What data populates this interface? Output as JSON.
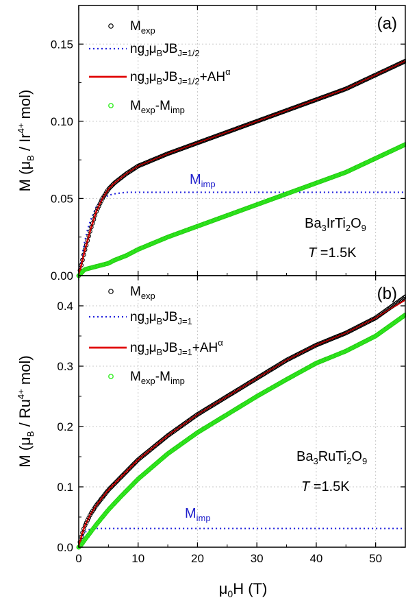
{
  "colors": {
    "exp": "#000000",
    "bj": "#2222dd",
    "fit": "#e00000",
    "diff": "#33ee22",
    "grid": "#c8c8c8"
  },
  "chart_data": [
    {
      "type": "scatter",
      "panel_label": "(a)",
      "xlabel": "",
      "ylabel": "M (μB / Ir4+ mol)",
      "xlim": [
        0,
        55
      ],
      "ylim": [
        0,
        0.175
      ],
      "x_ticks": [
        0,
        10,
        20,
        30,
        40,
        50
      ],
      "y_ticks": [
        0.0,
        0.05,
        0.1,
        0.15
      ],
      "y_tick_labels": [
        "0.00",
        "0.05",
        "0.10",
        "0.15"
      ],
      "grid": true,
      "legend_position": "top-left",
      "legend": [
        {
          "main": "M",
          "sub": "exp"
        },
        {
          "main": "ngJμBJBJ=1/2"
        },
        {
          "main": "ngJμBJBJ=1/2+AHα"
        },
        {
          "main": "Mexp-Mimp"
        }
      ],
      "compound": "Ba3IrTi2O9",
      "temperature": "T =1.5K",
      "imp_label": "Mimp",
      "series": [
        {
          "name": "Mexp",
          "style": "open-circle",
          "x": [
            0,
            0.5,
            1,
            2,
            3,
            4,
            5,
            6,
            8,
            10,
            15,
            20,
            25,
            30,
            35,
            40,
            45,
            50,
            55
          ],
          "y": [
            0,
            0.008,
            0.016,
            0.03,
            0.042,
            0.05,
            0.056,
            0.06,
            0.066,
            0.071,
            0.079,
            0.086,
            0.093,
            0.1,
            0.107,
            0.114,
            0.121,
            0.13,
            0.139
          ]
        },
        {
          "name": "ngJμBJBJ=1/2",
          "style": "dotted",
          "x": [
            0,
            0.5,
            1,
            1.5,
            2,
            3,
            4,
            5,
            6,
            8,
            10,
            55
          ],
          "y": [
            0,
            0.012,
            0.022,
            0.03,
            0.036,
            0.045,
            0.05,
            0.052,
            0.053,
            0.054,
            0.054,
            0.054
          ]
        },
        {
          "name": "ngJμBJBJ=1/2+AHα",
          "style": "solid",
          "x": [
            0,
            0.5,
            1,
            2,
            3,
            4,
            5,
            6,
            8,
            10,
            15,
            20,
            25,
            30,
            35,
            40,
            45,
            50,
            55
          ],
          "y": [
            0,
            0.008,
            0.016,
            0.03,
            0.042,
            0.05,
            0.056,
            0.06,
            0.066,
            0.071,
            0.079,
            0.086,
            0.093,
            0.1,
            0.107,
            0.114,
            0.121,
            0.13,
            0.139
          ]
        },
        {
          "name": "Mexp-Mimp",
          "style": "filled-circle",
          "x": [
            0,
            1,
            2,
            3,
            4,
            5,
            6,
            8,
            10,
            15,
            20,
            25,
            30,
            35,
            40,
            45,
            50,
            55
          ],
          "y": [
            0,
            0.004,
            0.005,
            0.006,
            0.007,
            0.008,
            0.01,
            0.013,
            0.017,
            0.025,
            0.032,
            0.039,
            0.046,
            0.053,
            0.06,
            0.067,
            0.076,
            0.085
          ]
        }
      ]
    },
    {
      "type": "scatter",
      "panel_label": "(b)",
      "xlabel": "μ0H (T)",
      "ylabel": "M (μB / Ru4+ mol)",
      "xlim": [
        0,
        55
      ],
      "ylim": [
        0,
        0.45
      ],
      "x_ticks": [
        0,
        10,
        20,
        30,
        40,
        50
      ],
      "y_ticks": [
        0.0,
        0.1,
        0.2,
        0.3,
        0.4
      ],
      "y_tick_labels": [
        "0.0",
        "0.1",
        "0.2",
        "0.3",
        "0.4"
      ],
      "grid": true,
      "legend_position": "top-left",
      "legend": [
        {
          "main": "M",
          "sub": "exp"
        },
        {
          "main": "ngJμBJBJ=1"
        },
        {
          "main": "ngJμBJBJ=1+AHα"
        },
        {
          "main": "Mexp-Mimp"
        }
      ],
      "compound": "Ba3RuTi2O9",
      "temperature": "T =1.5K",
      "imp_label": "Mimp",
      "series": [
        {
          "name": "Mexp",
          "style": "open-circle",
          "x": [
            0,
            0.5,
            1,
            2,
            3,
            5,
            7,
            10,
            15,
            20,
            25,
            30,
            35,
            40,
            45,
            50,
            55
          ],
          "y": [
            0,
            0.02,
            0.035,
            0.055,
            0.07,
            0.095,
            0.115,
            0.145,
            0.185,
            0.22,
            0.25,
            0.28,
            0.31,
            0.335,
            0.355,
            0.38,
            0.415
          ]
        },
        {
          "name": "ngJμBJBJ=1",
          "style": "dotted",
          "x": [
            0,
            0.5,
            1,
            1.5,
            2,
            3,
            55
          ],
          "y": [
            0,
            0.015,
            0.024,
            0.028,
            0.03,
            0.031,
            0.031
          ]
        },
        {
          "name": "ngJμBJBJ=1+AHα",
          "style": "solid",
          "x": [
            0,
            0.5,
            1,
            2,
            3,
            5,
            7,
            10,
            15,
            20,
            25,
            30,
            35,
            40,
            45,
            50,
            55
          ],
          "y": [
            0,
            0.02,
            0.035,
            0.055,
            0.07,
            0.095,
            0.115,
            0.145,
            0.185,
            0.22,
            0.25,
            0.28,
            0.31,
            0.335,
            0.355,
            0.38,
            0.41
          ]
        },
        {
          "name": "Mexp-Mimp",
          "style": "filled-circle",
          "x": [
            0,
            0.5,
            1,
            2,
            3,
            5,
            7,
            10,
            15,
            20,
            25,
            30,
            35,
            40,
            45,
            50,
            55
          ],
          "y": [
            0,
            0.005,
            0.012,
            0.025,
            0.038,
            0.062,
            0.083,
            0.113,
            0.155,
            0.19,
            0.22,
            0.25,
            0.278,
            0.305,
            0.325,
            0.35,
            0.385
          ]
        }
      ]
    }
  ]
}
